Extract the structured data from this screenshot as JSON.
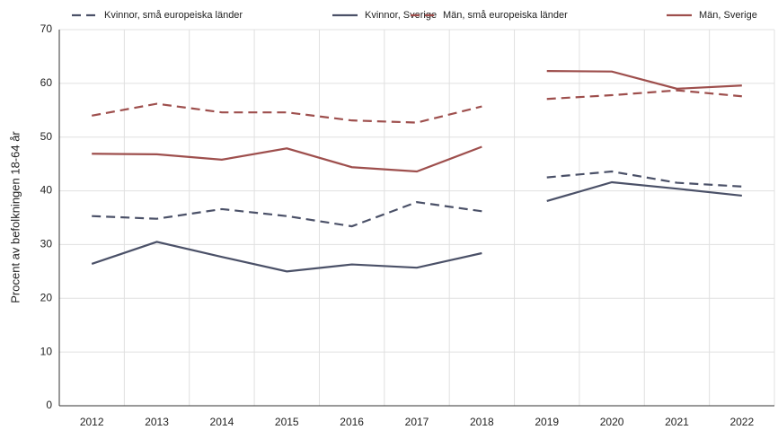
{
  "chart_data": {
    "type": "line",
    "y_label": "Procent av befolkningen 18-64 år",
    "categories": [
      "2012",
      "2013",
      "2014",
      "2015",
      "2016",
      "2017",
      "2018",
      "2019",
      "2020",
      "2021",
      "2022"
    ],
    "line_breaks": [
      "2019"
    ],
    "series": [
      {
        "name": "Kvinnor, små europeiska länder",
        "color": "#4b5168",
        "style": "dashed",
        "values": [
          35.3,
          34.8,
          36.6,
          35.3,
          33.4,
          37.9,
          36.2,
          42.5,
          43.6,
          41.5,
          40.8
        ]
      },
      {
        "name": "Kvinnor, Sverige",
        "color": "#4b5168",
        "style": "solid",
        "values": [
          26.4,
          30.5,
          27.7,
          25.0,
          26.3,
          25.7,
          28.4,
          38.1,
          41.6,
          40.4,
          39.1
        ]
      },
      {
        "name": "Män, små europeiska länder",
        "color": "#9e4f4d",
        "style": "dashed",
        "values": [
          54.0,
          56.2,
          54.6,
          54.6,
          53.1,
          52.7,
          55.7,
          57.1,
          57.8,
          58.7,
          57.6
        ]
      },
      {
        "name": "Män, Sverige",
        "color": "#9e4f4d",
        "style": "solid",
        "values": [
          46.9,
          46.8,
          45.8,
          47.9,
          44.4,
          43.6,
          48.2,
          62.3,
          62.2,
          59.0,
          59.6
        ]
      }
    ],
    "ylim": [
      0,
      70
    ],
    "yticks": [
      0,
      10,
      20,
      30,
      40,
      50,
      60,
      70
    ],
    "grid": true,
    "legend": "top"
  }
}
